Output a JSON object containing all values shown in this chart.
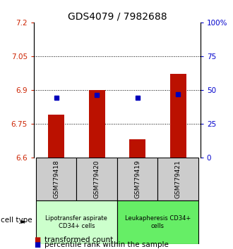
{
  "title": "GDS4079 / 7982688",
  "samples": [
    "GSM779418",
    "GSM779420",
    "GSM779419",
    "GSM779421"
  ],
  "bar_values": [
    6.79,
    6.9,
    6.68,
    6.97
  ],
  "bar_baseline": 6.6,
  "percentile_values": [
    44.0,
    46.0,
    44.0,
    46.5
  ],
  "ylim_left": [
    6.6,
    7.2
  ],
  "ylim_right": [
    0,
    100
  ],
  "yticks_left": [
    6.6,
    6.75,
    6.9,
    7.05,
    7.2
  ],
  "ytick_labels_left": [
    "6.6",
    "6.75",
    "6.9",
    "7.05",
    "7.2"
  ],
  "yticks_right": [
    0,
    25,
    50,
    75,
    100
  ],
  "ytick_labels_right": [
    "0",
    "25",
    "50",
    "75",
    "100%"
  ],
  "hlines": [
    6.75,
    6.9,
    7.05
  ],
  "bar_color": "#bb1100",
  "dot_color": "#0000bb",
  "bar_width": 0.4,
  "cell_types": [
    "Lipotransfer aspirate\nCD34+ cells",
    "Leukapheresis CD34+\ncells"
  ],
  "cell_type_bg1": "#ccffcc",
  "cell_type_bg2": "#66ee66",
  "legend_label_bar": "transformed count",
  "legend_label_dot": "percentile rank within the sample",
  "cell_type_label": "cell type",
  "title_fontsize": 10,
  "tick_fontsize": 7.5,
  "legend_fontsize": 7.5,
  "sample_fontsize": 6.5,
  "celltype_fontsize": 6.0
}
